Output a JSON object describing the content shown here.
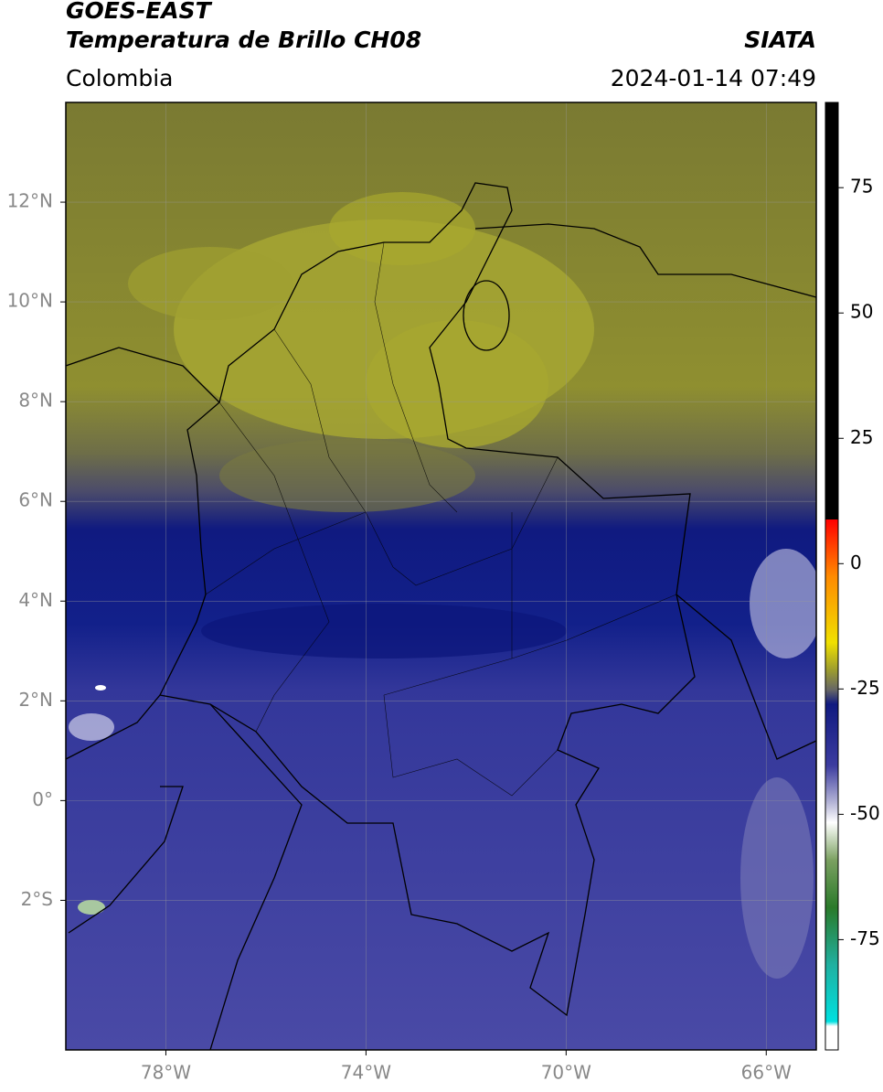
{
  "header": {
    "satellite": "GOES-EAST",
    "product": "Temperatura de Brillo CH08",
    "source": "SIATA",
    "region": "Colombia",
    "datetime": "2024-01-14 07:49"
  },
  "map": {
    "xlim": [
      -80,
      -65
    ],
    "ylim": [
      -5,
      14
    ],
    "xticks": [
      {
        "value": -78,
        "label": "78°W"
      },
      {
        "value": -74,
        "label": "74°W"
      },
      {
        "value": -70,
        "label": "70°W"
      },
      {
        "value": -66,
        "label": "66°W"
      }
    ],
    "yticks": [
      {
        "value": 12,
        "label": "12°N"
      },
      {
        "value": 10,
        "label": "10°N"
      },
      {
        "value": 8,
        "label": "8°N"
      },
      {
        "value": 6,
        "label": "6°N"
      },
      {
        "value": 4,
        "label": "4°N"
      },
      {
        "value": 2,
        "label": "2°N"
      },
      {
        "value": 0,
        "label": "0°"
      },
      {
        "value": -2,
        "label": "2°S"
      }
    ],
    "grid": true
  },
  "colorbar": {
    "lim": [
      -97,
      92
    ],
    "ticks": [
      75,
      50,
      25,
      0,
      -25,
      -50,
      -75
    ]
  }
}
